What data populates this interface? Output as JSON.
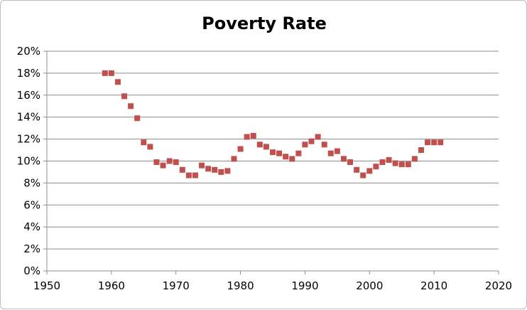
{
  "chart_data": {
    "type": "scatter",
    "title": "Poverty Rate",
    "xlabel": "",
    "ylabel": "",
    "xlim": [
      1950,
      2020
    ],
    "ylim": [
      0,
      20
    ],
    "x_ticks": [
      "1950",
      "1960",
      "1970",
      "1980",
      "1990",
      "2000",
      "2010",
      "2020"
    ],
    "y_ticks": [
      "0%",
      "2%",
      "4%",
      "6%",
      "8%",
      "10%",
      "12%",
      "14%",
      "16%",
      "18%",
      "20%"
    ],
    "grid": "horizontal",
    "legend": "none",
    "marker": "square",
    "marker_color": "#C0504D",
    "series": [
      {
        "points": [
          {
            "x": 1959,
            "y": 18.0
          },
          {
            "x": 1960,
            "y": 18.0
          },
          {
            "x": 1961,
            "y": 17.2
          },
          {
            "x": 1962,
            "y": 15.9
          },
          {
            "x": 1963,
            "y": 15.0
          },
          {
            "x": 1964,
            "y": 13.9
          },
          {
            "x": 1965,
            "y": 11.7
          },
          {
            "x": 1966,
            "y": 11.3
          },
          {
            "x": 1967,
            "y": 9.9
          },
          {
            "x": 1968,
            "y": 9.6
          },
          {
            "x": 1969,
            "y": 10.0
          },
          {
            "x": 1970,
            "y": 9.9
          },
          {
            "x": 1971,
            "y": 9.2
          },
          {
            "x": 1972,
            "y": 8.7
          },
          {
            "x": 1973,
            "y": 8.7
          },
          {
            "x": 1974,
            "y": 9.6
          },
          {
            "x": 1975,
            "y": 9.3
          },
          {
            "x": 1976,
            "y": 9.2
          },
          {
            "x": 1977,
            "y": 9.0
          },
          {
            "x": 1978,
            "y": 9.1
          },
          {
            "x": 1979,
            "y": 10.2
          },
          {
            "x": 1980,
            "y": 11.1
          },
          {
            "x": 1981,
            "y": 12.2
          },
          {
            "x": 1982,
            "y": 12.3
          },
          {
            "x": 1983,
            "y": 11.5
          },
          {
            "x": 1984,
            "y": 11.3
          },
          {
            "x": 1985,
            "y": 10.8
          },
          {
            "x": 1986,
            "y": 10.7
          },
          {
            "x": 1987,
            "y": 10.4
          },
          {
            "x": 1988,
            "y": 10.2
          },
          {
            "x": 1989,
            "y": 10.7
          },
          {
            "x": 1990,
            "y": 11.5
          },
          {
            "x": 1991,
            "y": 11.8
          },
          {
            "x": 1992,
            "y": 12.2
          },
          {
            "x": 1993,
            "y": 11.5
          },
          {
            "x": 1994,
            "y": 10.7
          },
          {
            "x": 1995,
            "y": 10.9
          },
          {
            "x": 1996,
            "y": 10.2
          },
          {
            "x": 1997,
            "y": 9.9
          },
          {
            "x": 1998,
            "y": 9.2
          },
          {
            "x": 1999,
            "y": 8.7
          },
          {
            "x": 2000,
            "y": 9.1
          },
          {
            "x": 2001,
            "y": 9.5
          },
          {
            "x": 2002,
            "y": 9.9
          },
          {
            "x": 2003,
            "y": 10.1
          },
          {
            "x": 2004,
            "y": 9.8
          },
          {
            "x": 2005,
            "y": 9.7
          },
          {
            "x": 2006,
            "y": 9.7
          },
          {
            "x": 2007,
            "y": 10.2
          },
          {
            "x": 2008,
            "y": 11.0
          },
          {
            "x": 2009,
            "y": 11.7
          },
          {
            "x": 2010,
            "y": 11.7
          },
          {
            "x": 2011,
            "y": 11.7
          }
        ]
      }
    ]
  }
}
